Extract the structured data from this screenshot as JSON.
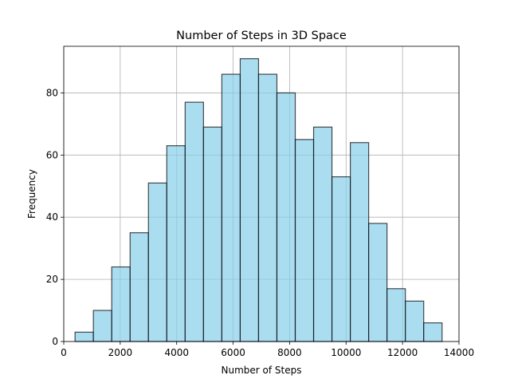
{
  "chart_data": {
    "type": "histogram",
    "title": "Number of Steps in 3D Space",
    "xlabel": "Number of Steps",
    "ylabel": "Frequency",
    "xlim": [
      0,
      14000
    ],
    "ylim": [
      0,
      95
    ],
    "xticks": [
      0,
      2000,
      4000,
      6000,
      8000,
      10000,
      12000,
      14000
    ],
    "yticks": [
      0,
      20,
      40,
      60,
      80
    ],
    "grid": true,
    "bar_color": "#87ceeb",
    "bar_edge_color": "#000000",
    "bins": [
      {
        "start": 400,
        "end": 1050,
        "count": 3
      },
      {
        "start": 1050,
        "end": 1700,
        "count": 10
      },
      {
        "start": 1700,
        "end": 2350,
        "count": 24
      },
      {
        "start": 2350,
        "end": 3000,
        "count": 35
      },
      {
        "start": 3000,
        "end": 3650,
        "count": 51
      },
      {
        "start": 3650,
        "end": 4300,
        "count": 63
      },
      {
        "start": 4300,
        "end": 4950,
        "count": 77
      },
      {
        "start": 4950,
        "end": 5600,
        "count": 69
      },
      {
        "start": 5600,
        "end": 6250,
        "count": 86
      },
      {
        "start": 6250,
        "end": 6900,
        "count": 91
      },
      {
        "start": 6900,
        "end": 7550,
        "count": 86
      },
      {
        "start": 7550,
        "end": 8200,
        "count": 80
      },
      {
        "start": 8200,
        "end": 8850,
        "count": 65
      },
      {
        "start": 8850,
        "end": 9500,
        "count": 69
      },
      {
        "start": 9500,
        "end": 10150,
        "count": 53
      },
      {
        "start": 10150,
        "end": 10800,
        "count": 64
      },
      {
        "start": 10800,
        "end": 11450,
        "count": 38
      },
      {
        "start": 11450,
        "end": 12100,
        "count": 17
      },
      {
        "start": 12100,
        "end": 12750,
        "count": 13
      },
      {
        "start": 12750,
        "end": 13400,
        "count": 6
      }
    ]
  }
}
